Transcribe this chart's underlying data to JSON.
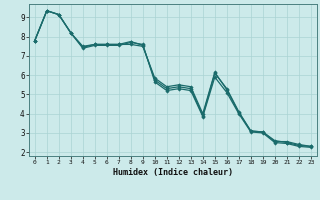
{
  "xlabel": "Humidex (Indice chaleur)",
  "bg_color": "#cceaea",
  "line_color": "#1a6b6b",
  "marker_color": "#1a6b6b",
  "xlim": [
    -0.5,
    23.5
  ],
  "ylim": [
    1.8,
    9.7
  ],
  "xticks": [
    0,
    1,
    2,
    3,
    4,
    5,
    6,
    7,
    8,
    9,
    10,
    11,
    12,
    13,
    14,
    15,
    16,
    17,
    18,
    19,
    20,
    21,
    22,
    23
  ],
  "yticks": [
    2,
    3,
    4,
    5,
    6,
    7,
    8,
    9
  ],
  "grid_color": "#aad4d4",
  "series": [
    {
      "x": [
        0,
        1,
        2,
        3,
        4,
        5,
        6,
        7,
        8,
        9,
        10,
        11,
        12,
        13,
        14,
        15,
        16,
        17,
        18,
        19,
        20,
        21,
        22,
        23
      ],
      "y": [
        7.8,
        9.35,
        9.15,
        8.2,
        7.45,
        7.6,
        7.6,
        7.6,
        7.75,
        7.55,
        5.75,
        5.3,
        5.4,
        5.3,
        3.9,
        6.1,
        5.3,
        4.1,
        3.1,
        3.05,
        2.55,
        2.55,
        2.4,
        2.3
      ]
    },
    {
      "x": [
        0,
        1,
        2,
        3,
        4,
        5,
        6,
        7,
        8,
        9,
        10,
        11,
        12,
        13,
        14,
        15,
        16,
        17,
        18,
        19,
        20,
        21,
        22,
        23
      ],
      "y": [
        7.8,
        9.35,
        9.15,
        8.2,
        7.5,
        7.6,
        7.6,
        7.6,
        7.6,
        7.5,
        5.85,
        5.4,
        5.5,
        5.4,
        4.0,
        6.15,
        5.25,
        4.05,
        3.1,
        3.05,
        2.6,
        2.5,
        2.35,
        2.3
      ]
    },
    {
      "x": [
        0,
        1,
        2,
        3,
        4,
        5,
        6,
        7,
        8,
        9,
        10,
        11,
        12,
        13,
        14,
        15,
        16,
        17,
        18,
        19,
        20,
        21,
        22,
        23
      ],
      "y": [
        7.8,
        9.35,
        9.15,
        8.2,
        7.4,
        7.55,
        7.55,
        7.55,
        7.7,
        7.6,
        5.65,
        5.2,
        5.3,
        5.2,
        3.85,
        5.9,
        5.1,
        4.0,
        3.05,
        3.0,
        2.5,
        2.45,
        2.3,
        2.25
      ]
    }
  ]
}
